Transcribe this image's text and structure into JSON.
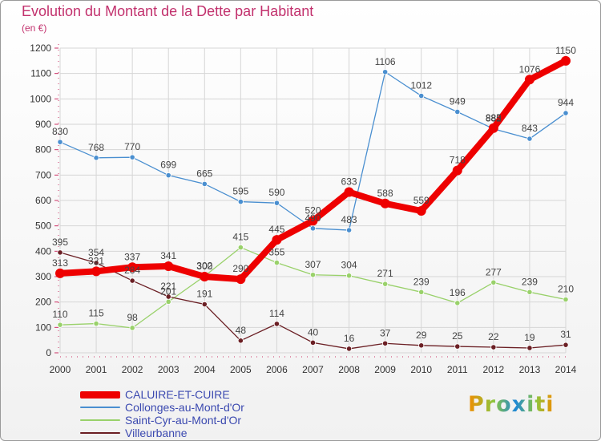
{
  "header": {
    "title": "Evolution du Montant de la Dette par Habitant",
    "unit": "(en €)"
  },
  "logo_text": "Proxiti",
  "chart_data": {
    "type": "line",
    "title": "Evolution du Montant de la Dette par Habitant",
    "subtitle": "(en €)",
    "xlabel": "",
    "ylabel": "",
    "x": [
      2000,
      2001,
      2002,
      2003,
      2004,
      2005,
      2006,
      2007,
      2008,
      2009,
      2010,
      2011,
      2012,
      2013,
      2014
    ],
    "ylim": [
      0,
      1200
    ],
    "yticks": [
      0,
      100,
      200,
      300,
      400,
      500,
      600,
      700,
      800,
      900,
      1000,
      1100,
      1200
    ],
    "grid": true,
    "legend_position": "bottom-left",
    "series": [
      {
        "name": "Collonges-au-Mont-d'Or",
        "color": "#4a8fd0",
        "values": [
          830,
          768,
          770,
          699,
          665,
          595,
          590,
          490,
          483,
          1106,
          1012,
          949,
          882,
          843,
          944
        ]
      },
      {
        "name": "Saint-Cyr-au-Mont-d'Or",
        "color": "#99d16a",
        "values": [
          110,
          115,
          98,
          201,
          302,
          415,
          355,
          307,
          304,
          271,
          239,
          196,
          277,
          239,
          210
        ]
      },
      {
        "name": "Villeurbanne",
        "color": "#6b1f24",
        "values": [
          395,
          354,
          284,
          221,
          191,
          48,
          114,
          40,
          16,
          37,
          29,
          25,
          22,
          19,
          31
        ]
      },
      {
        "name": "CALUIRE-ET-CUIRE",
        "color": "#ee0000",
        "values": [
          313,
          321,
          337,
          341,
          300,
          290,
          445,
          520,
          633,
          588,
          559,
          718,
          885,
          1076,
          1150
        ]
      }
    ]
  }
}
